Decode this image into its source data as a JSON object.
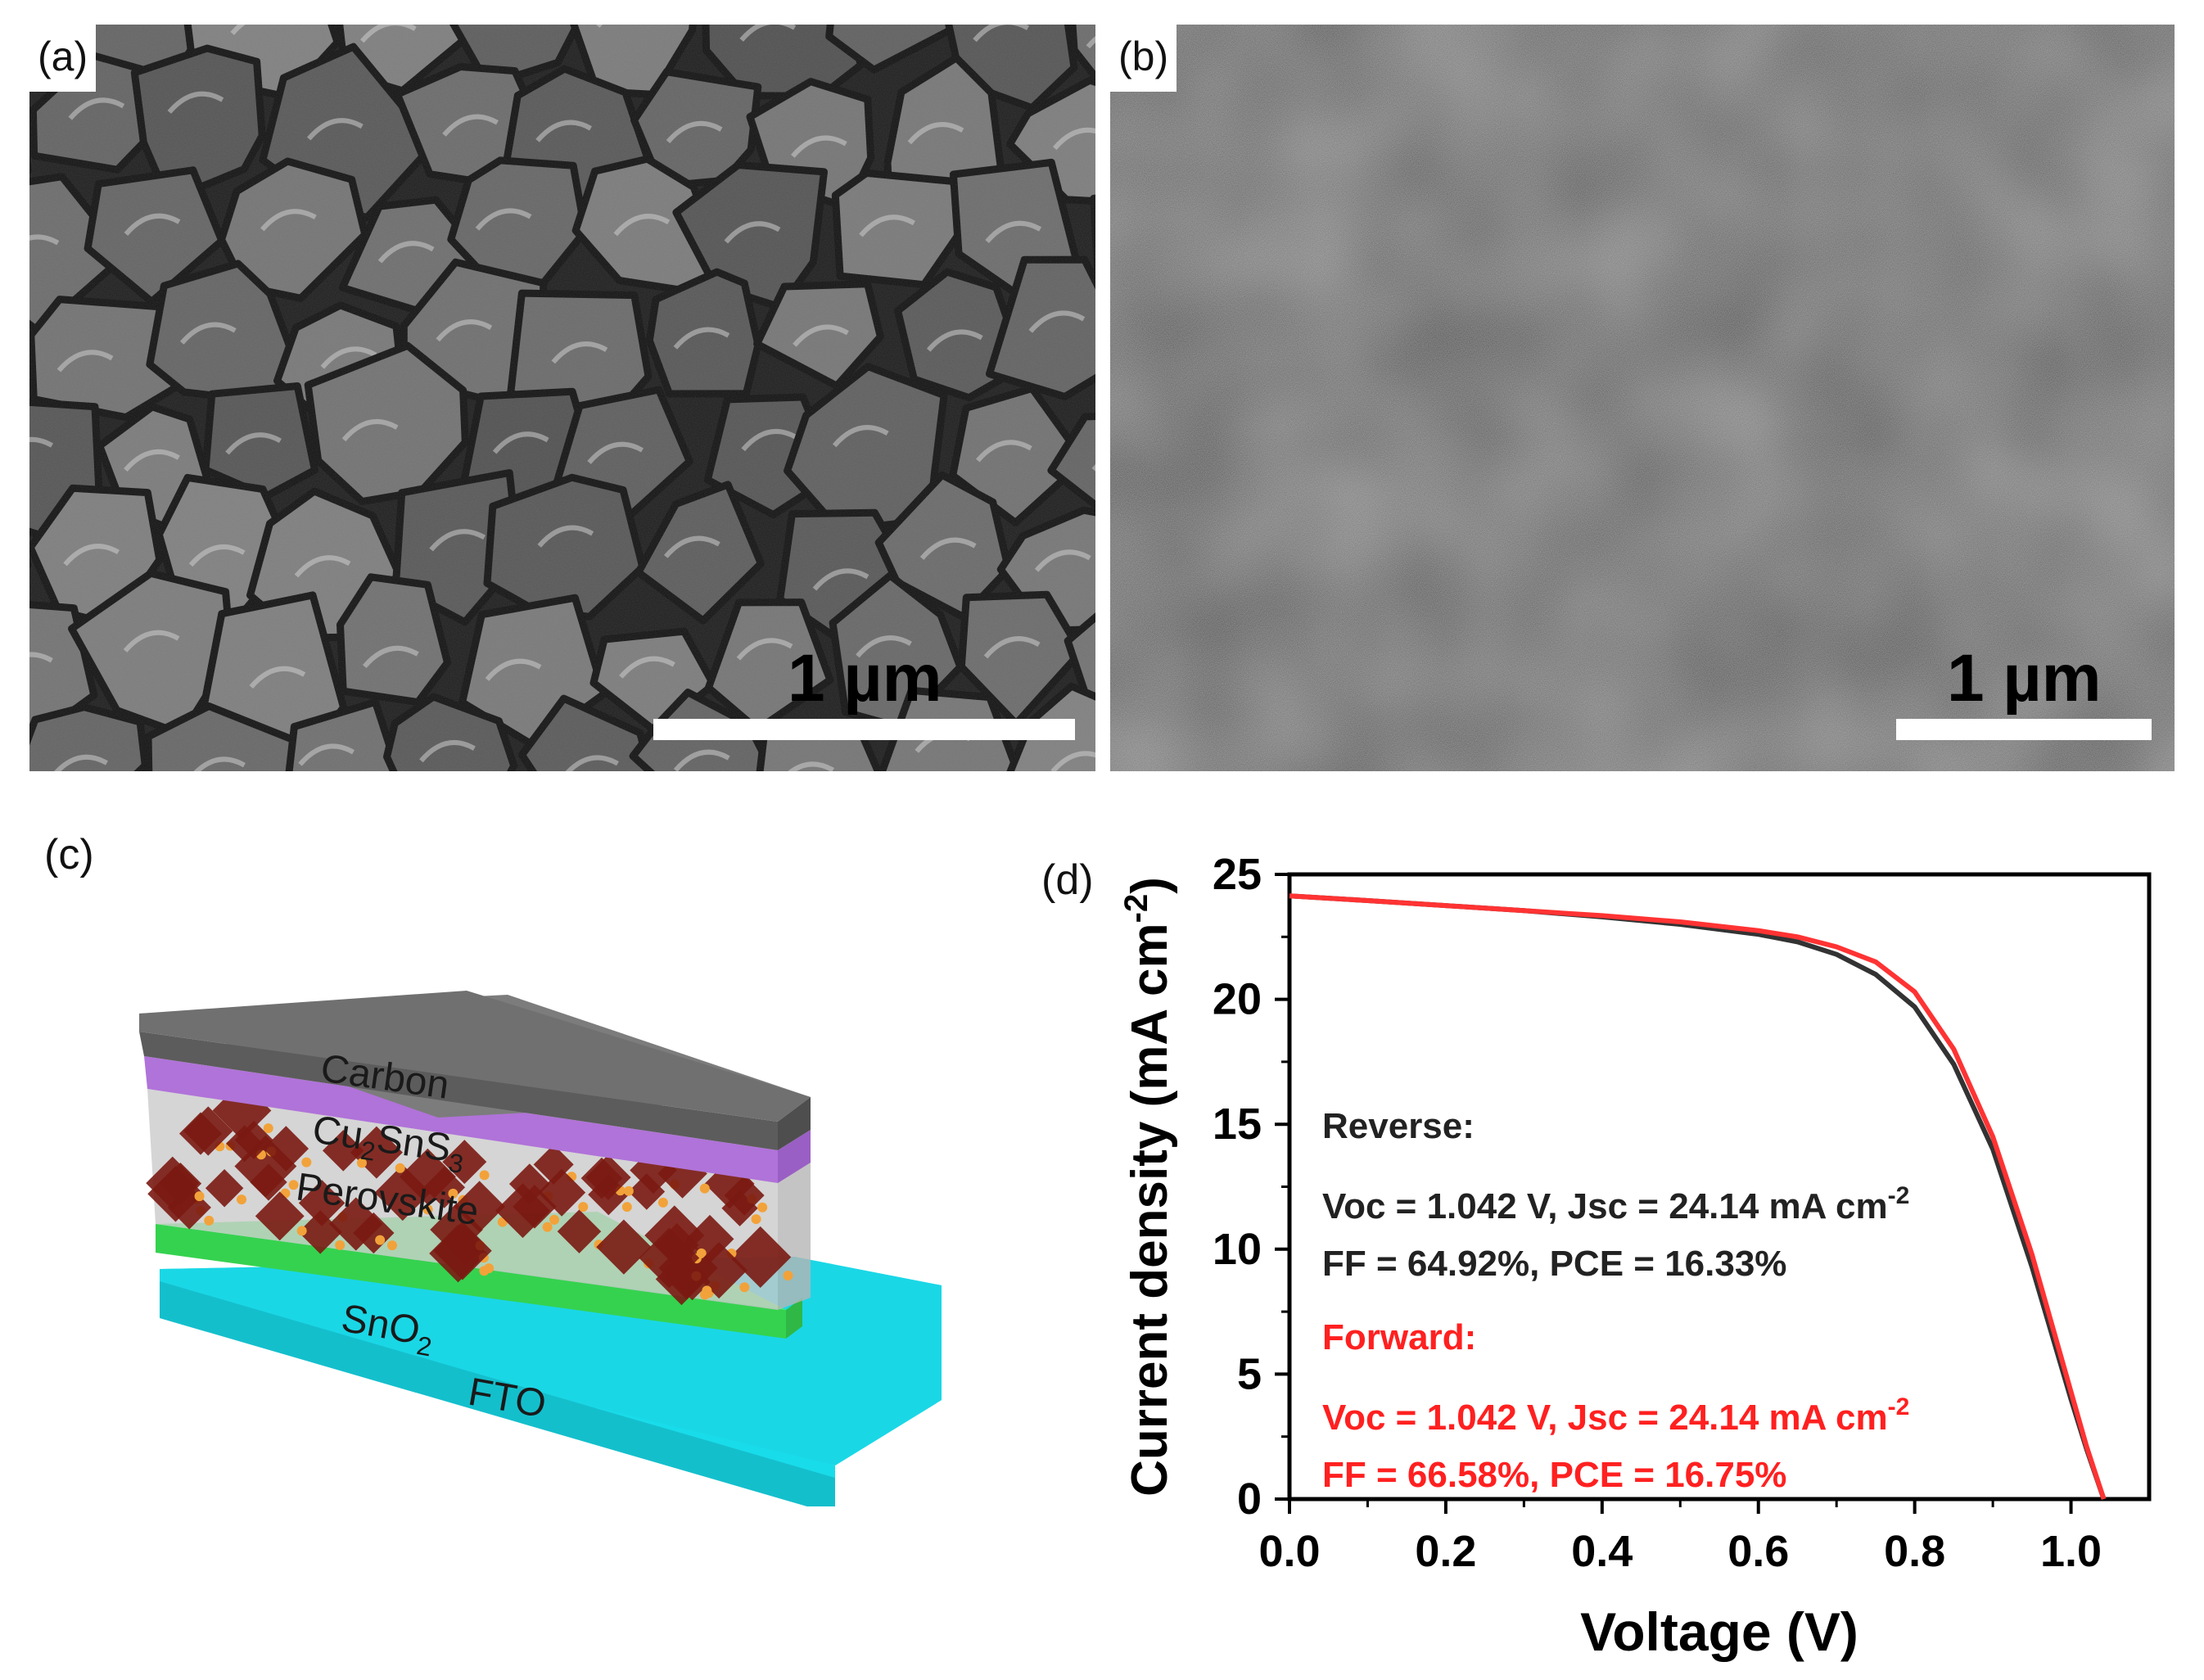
{
  "panels": {
    "a": {
      "tag": "(a)",
      "scalebar_label": "1 µm"
    },
    "b": {
      "tag": "(b)",
      "scalebar_label": "1 µm"
    },
    "c": {
      "tag": "(c)",
      "layers": {
        "carbon": "Carbon",
        "cu2sns3_base": "Cu",
        "cu2sns3_sub1": "2",
        "cu2sns3_mid": "SnS",
        "cu2sns3_sub2": "3",
        "perovskite": "Perovskite",
        "sno2_base": "SnO",
        "sno2_sub": "2",
        "fto": "FTO"
      },
      "colors": {
        "carbon": "#6e6e6e",
        "cu2sns3": "#b073d9",
        "perovskite_box": "#c9c9c9",
        "perovskite_crystal": "#7a1a12",
        "sno2": "#3ee05a",
        "fto": "#19dcea"
      }
    },
    "d": {
      "tag": "(d)"
    }
  },
  "chart_data": {
    "type": "line",
    "xlabel": "Voltage (V)",
    "ylabel_base": "Current density (mA cm",
    "ylabel_sup": "-2",
    "ylabel_close": ")",
    "xlim": [
      0.0,
      1.1
    ],
    "ylim": [
      0,
      25
    ],
    "xticks": [
      0.0,
      0.2,
      0.4,
      0.6,
      0.8,
      1.0
    ],
    "xtick_labels": [
      "0.0",
      "0.2",
      "0.4",
      "0.6",
      "0.8",
      "1.0"
    ],
    "yticks": [
      0,
      5,
      10,
      15,
      20,
      25
    ],
    "ytick_labels": [
      "0",
      "5",
      "10",
      "15",
      "20",
      "25"
    ],
    "series": [
      {
        "name": "Reverse",
        "color": "#333333",
        "x": [
          0.0,
          0.1,
          0.2,
          0.3,
          0.4,
          0.5,
          0.6,
          0.65,
          0.7,
          0.75,
          0.8,
          0.85,
          0.9,
          0.95,
          1.0,
          1.02,
          1.042
        ],
        "y": [
          24.14,
          23.95,
          23.75,
          23.55,
          23.3,
          23.0,
          22.6,
          22.3,
          21.8,
          21.0,
          19.7,
          17.4,
          14.0,
          9.3,
          4.0,
          2.0,
          0.0
        ]
      },
      {
        "name": "Forward",
        "color": "#ff3333",
        "x": [
          0.0,
          0.1,
          0.2,
          0.3,
          0.4,
          0.5,
          0.6,
          0.65,
          0.7,
          0.75,
          0.8,
          0.85,
          0.9,
          0.95,
          1.0,
          1.02,
          1.042
        ],
        "y": [
          24.14,
          23.95,
          23.75,
          23.55,
          23.35,
          23.1,
          22.75,
          22.5,
          22.1,
          21.5,
          20.3,
          18.0,
          14.5,
          9.8,
          4.3,
          2.1,
          0.0
        ]
      }
    ],
    "annotations": {
      "reverse_head": "Reverse:",
      "reverse_line1_base": "Voc = 1.042 V, Jsc = 24.14 mA cm",
      "reverse_line1_sup": "-2",
      "reverse_line2": "FF = 64.92%,   PCE = 16.33%",
      "forward_head": "Forward:",
      "forward_line1_base": "Voc = 1.042 V, Jsc = 24.14 mA cm",
      "forward_line1_sup": "-2",
      "forward_line2": "FF = 66.58%,   PCE = 16.75%"
    }
  }
}
